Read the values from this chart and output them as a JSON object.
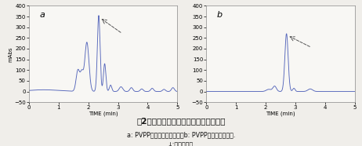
{
  "title": "図2　茶葉抽出液試料のクロマトグラム",
  "caption_line2": "a: PVPPプレカラム未装着，b: PVPPプレカラム装着.",
  "caption_line3": "↓:カフェイン.",
  "xlim": [
    0,
    5
  ],
  "ylim": [
    -50,
    400
  ],
  "xlabel": "TIME (min)",
  "ylabel": "mAbs",
  "yticks": [
    -50,
    0,
    50,
    100,
    150,
    200,
    250,
    300,
    350,
    400
  ],
  "xticks": [
    0,
    1,
    2,
    3,
    4,
    5
  ],
  "line_color": "#5566bb",
  "background": "#f0eeea",
  "plot_bg": "#f8f7f4",
  "label_a": "a",
  "label_b": "b"
}
